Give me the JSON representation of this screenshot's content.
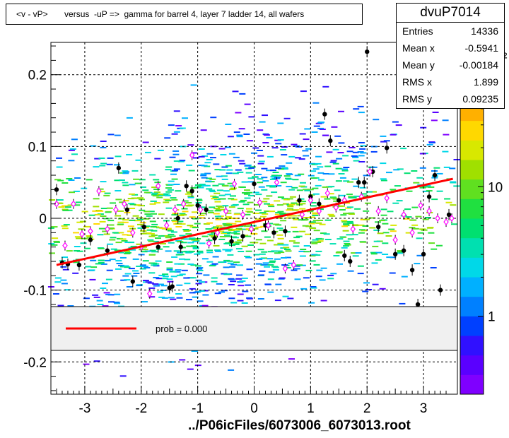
{
  "title": "<v - vP>       versus  -uP =>  gamma for barrel 4, layer 7 ladder 14, all wafers",
  "footer": "../P06icFiles/6073006_6073013.root",
  "stats": {
    "name": "dvuP7014",
    "rows": [
      {
        "label": "Entries",
        "value": "14336"
      },
      {
        "label": "Mean x",
        "value": "-0.5941"
      },
      {
        "label": "Mean y",
        "value": "-0.00184"
      },
      {
        "label": "RMS x",
        "value": "1.899"
      },
      {
        "label": "RMS y",
        "value": "0.09235"
      }
    ]
  },
  "legend": {
    "label": "prob = 0.000",
    "color": "#ff0000"
  },
  "chart_data": {
    "type": "scatter",
    "xlim": [
      -3.6,
      3.6
    ],
    "ylim": [
      -0.245,
      0.245
    ],
    "x_ticks": [
      -3,
      -2,
      -1,
      0,
      1,
      2,
      3
    ],
    "y_ticks": [
      -0.2,
      -0.1,
      0,
      0.1,
      0.2
    ],
    "x_tick_labels": [
      "-3",
      "-2",
      "-1",
      "0",
      "1",
      "2",
      "3"
    ],
    "y_tick_labels": [
      "-0.2",
      "-0.1",
      "0",
      "0.1",
      "0.2"
    ],
    "grid": true,
    "z_tick_labels": [
      "1",
      "10",
      "10²"
    ],
    "z_ticks": [
      1,
      10,
      100
    ],
    "z_range": [
      0.25,
      130
    ],
    "fit_line": {
      "x": [
        -3.5,
        3.52
      ],
      "y": [
        -0.065,
        0.055
      ],
      "color": "#ff0000"
    },
    "black_points": {
      "color": "#000000",
      "x": [
        -3.5,
        -3.4,
        -3.3,
        -3.1,
        -2.9,
        -2.6,
        -2.4,
        -2.25,
        -2.15,
        -1.95,
        -1.7,
        -1.5,
        -1.45,
        -1.35,
        -1.3,
        -1.2,
        -1.1,
        -1.0,
        -0.85,
        -0.7,
        -0.4,
        -0.2,
        0.0,
        0.2,
        0.35,
        0.55,
        0.8,
        1.0,
        1.15,
        1.25,
        1.35,
        1.5,
        1.6,
        1.7,
        1.85,
        1.95,
        2.0,
        2.1,
        2.2,
        2.35,
        2.5,
        2.65,
        2.8,
        2.9,
        3.0,
        3.1,
        3.2,
        3.3,
        3.45
      ],
      "y": [
        0.04,
        -0.062,
        -0.064,
        -0.065,
        -0.03,
        -0.045,
        0.07,
        0.012,
        -0.088,
        -0.012,
        -0.04,
        -0.097,
        -0.095,
        0.0,
        -0.04,
        0.045,
        0.038,
        0.018,
        0.012,
        -0.028,
        -0.032,
        -0.025,
        0.048,
        -0.01,
        -0.02,
        -0.018,
        0.025,
        0.03,
        0.02,
        0.145,
        0.108,
        0.025,
        -0.052,
        -0.06,
        0.05,
        0.05,
        0.232,
        0.065,
        -0.012,
        0.098,
        -0.05,
        -0.045,
        -0.072,
        -0.12,
        -0.05,
        0.03,
        0.06,
        -0.1,
        0.005
      ]
    },
    "profile_points": {
      "color": "#ff00ff",
      "x": [
        -3.5,
        -3.35,
        -3.2,
        -3.05,
        -2.9,
        -2.75,
        -2.6,
        -2.45,
        -2.3,
        -2.15,
        -2.0,
        -1.85,
        -1.7,
        -1.55,
        -1.4,
        -1.25,
        -1.1,
        -0.95,
        -0.8,
        -0.65,
        -0.5,
        -0.35,
        -0.2,
        -0.05,
        0.1,
        0.25,
        0.4,
        0.55,
        0.7,
        0.85,
        1.0,
        1.15,
        1.3,
        1.45,
        1.6,
        1.75,
        1.9,
        2.05,
        2.2,
        2.35,
        2.5,
        2.65,
        2.8,
        2.95,
        3.1,
        3.25,
        3.4,
        3.5
      ],
      "y": [
        0.02,
        -0.038,
        0.02,
        -0.022,
        -0.018,
        0.038,
        -0.015,
        0.012,
        0.02,
        -0.02,
        -0.04,
        -0.105,
        0.045,
        -0.01,
        0.012,
        0.02,
        0.088,
        0.012,
        -0.035,
        -0.02,
        0.01,
        0.048,
        0.005,
        -0.015,
        0.022,
        -0.01,
        0.05,
        -0.07,
        -0.065,
        0.005,
        0.025,
        0.01,
        0.035,
        0.015,
        0.025,
        -0.015,
        0.03,
        0.065,
        0.01,
        0.028,
        -0.03,
        0.005,
        -0.02,
        0.018,
        0.01,
        0.0,
        -0.005,
        0.0
      ]
    },
    "density_seed": 7014,
    "density_count": 1500,
    "density_sigma_x": 1.9,
    "density_sigma_y": 0.09,
    "density_mean_x": -0.6
  }
}
